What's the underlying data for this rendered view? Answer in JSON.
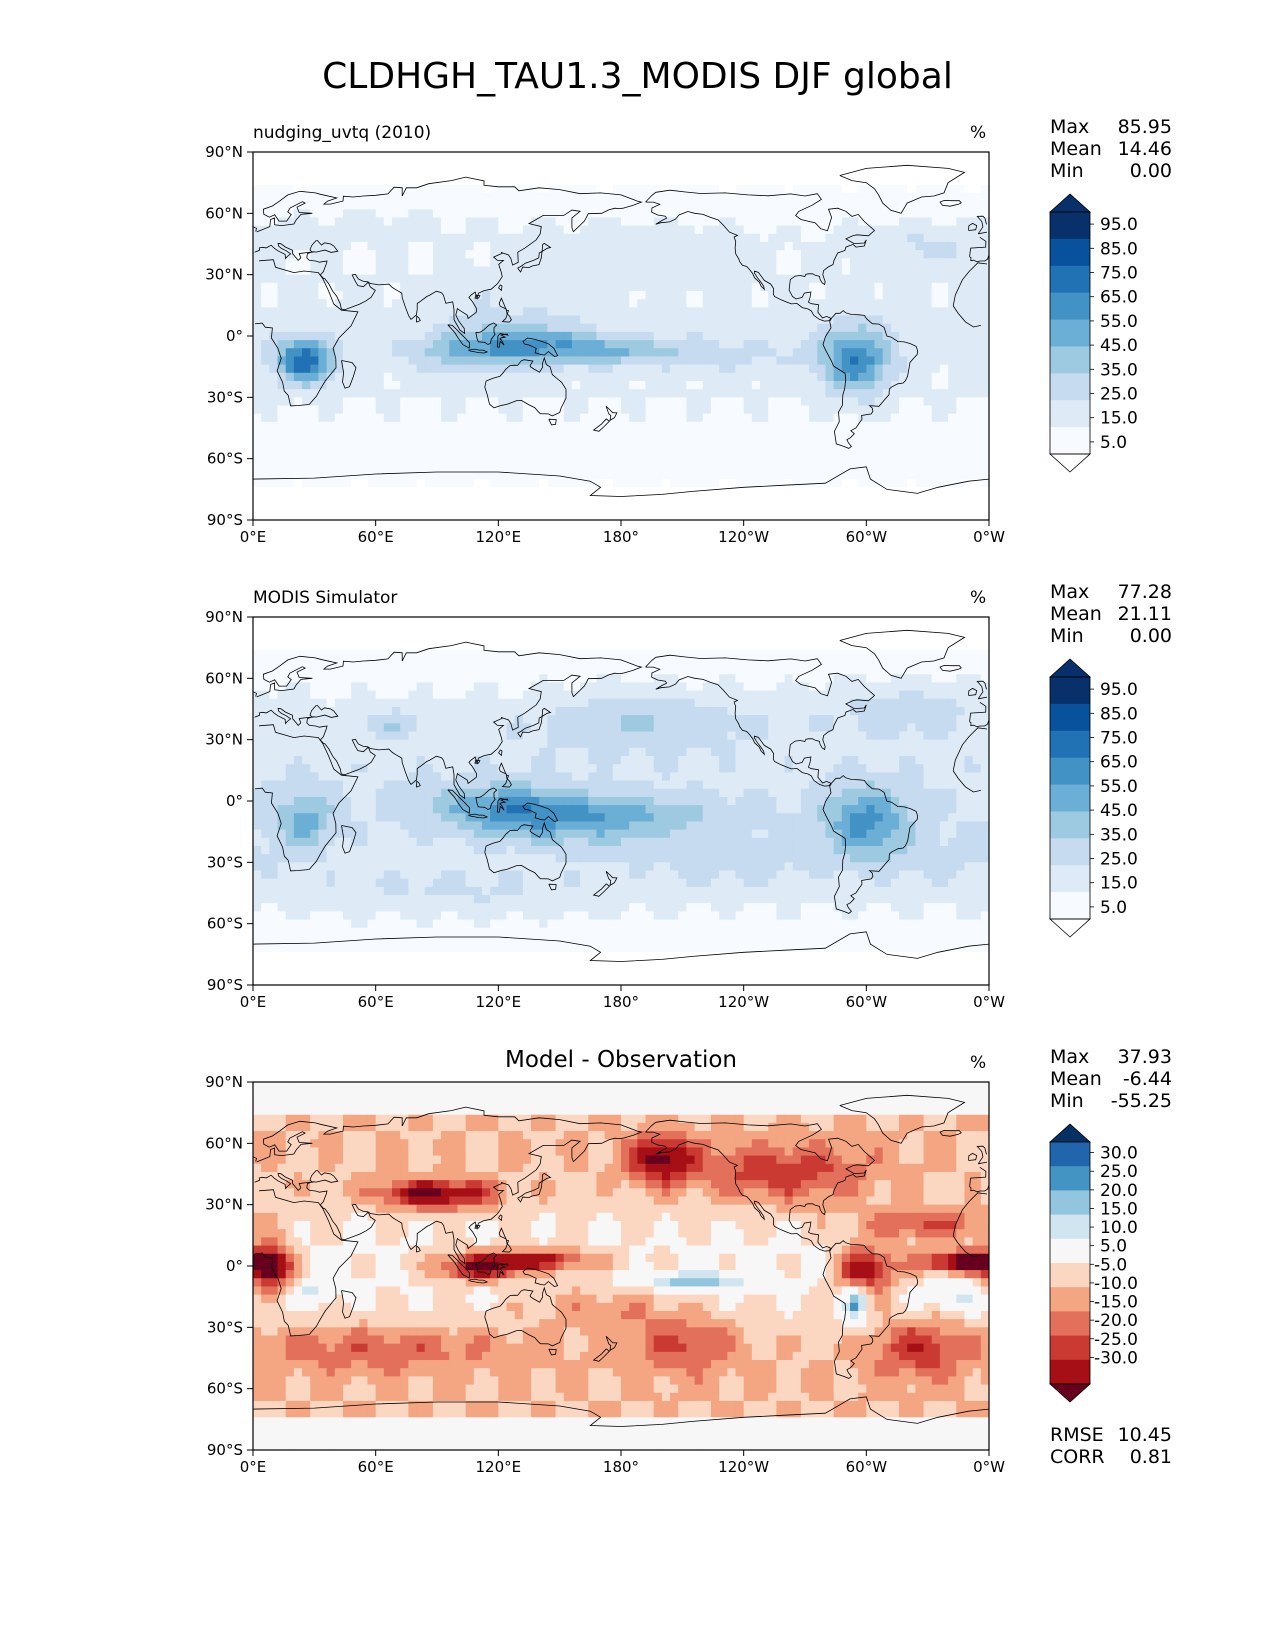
{
  "figure": {
    "title": "CLDHGH_TAU1.3_MODIS DJF global"
  },
  "colors": {
    "blues": [
      "#f7fbff",
      "#deebf7",
      "#c6dbef",
      "#9ecae1",
      "#6baed6",
      "#4292c6",
      "#2171b5",
      "#08519c",
      "#08306b"
    ],
    "diff": [
      "#67001f",
      "#a50f15",
      "#cb3a32",
      "#e3705a",
      "#f4a582",
      "#fbd7c2",
      "#f7f7f7",
      "#d1e5f0",
      "#92c5de",
      "#4393c3",
      "#2166ac",
      "#053061"
    ],
    "coast": "#000000"
  },
  "panels": [
    {
      "id": "test",
      "title": "nudging_uvtq (2010)",
      "units": "%",
      "stats": [
        [
          "Max",
          "85.95"
        ],
        [
          "Mean",
          "14.46"
        ],
        [
          "Min",
          "0.00"
        ]
      ],
      "colorbar_labels": [
        "95.0",
        "85.0",
        "75.0",
        "65.0",
        "55.0",
        "45.0",
        "35.0",
        "25.0",
        "15.0",
        "5.0"
      ],
      "colorbar": "sequential"
    },
    {
      "id": "ref",
      "title": "MODIS Simulator",
      "units": "%",
      "stats": [
        [
          "Max",
          "77.28"
        ],
        [
          "Mean",
          "21.11"
        ],
        [
          "Min",
          "0.00"
        ]
      ],
      "colorbar_labels": [
        "95.0",
        "85.0",
        "75.0",
        "65.0",
        "55.0",
        "45.0",
        "35.0",
        "25.0",
        "15.0",
        "5.0"
      ],
      "colorbar": "sequential"
    },
    {
      "id": "diff",
      "title": "Model - Observation",
      "units": "%",
      "stats": [
        [
          "Max",
          "37.93"
        ],
        [
          "Mean",
          "-6.44"
        ],
        [
          "Min",
          "-55.25"
        ]
      ],
      "colorbar_labels": [
        "30.0",
        "25.0",
        "20.0",
        "15.0",
        "10.0",
        "5.0",
        "-5.0",
        "-10.0",
        "-15.0",
        "-20.0",
        "-25.0",
        "-30.0"
      ],
      "colorbar": "diverging",
      "extra_stats": [
        [
          "RMSE",
          "10.45"
        ],
        [
          "CORR",
          "0.81"
        ]
      ]
    }
  ],
  "axes": {
    "lat_ticks": [
      "90°N",
      "60°N",
      "30°N",
      "0°",
      "30°S",
      "60°S",
      "90°S"
    ],
    "lon_ticks": [
      "0°E",
      "60°E",
      "120°E",
      "180°",
      "120°W",
      "60°W",
      "0°W"
    ]
  }
}
